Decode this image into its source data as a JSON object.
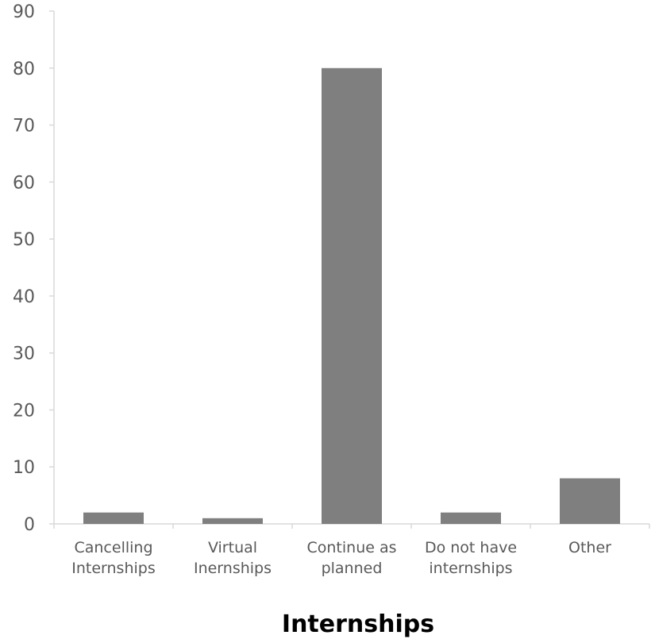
{
  "chart_data": {
    "type": "bar",
    "categories": [
      [
        "Cancelling",
        "Internships"
      ],
      [
        "Virtual",
        "Inernships"
      ],
      [
        "Continue as",
        "planned"
      ],
      [
        "Do not have",
        "internships"
      ],
      [
        "Other"
      ]
    ],
    "values": [
      2,
      1,
      80,
      2,
      8
    ],
    "xlabel": "Internships",
    "ylabel": "",
    "ylim": [
      0,
      90
    ],
    "yticks": [
      0,
      10,
      20,
      30,
      40,
      50,
      60,
      70,
      80,
      90
    ],
    "grid": false,
    "legend": "none",
    "bar_color": "#7f7f7f",
    "axis_color": "#d9d9d9"
  }
}
